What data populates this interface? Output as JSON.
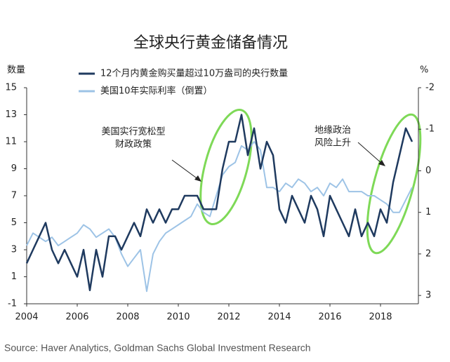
{
  "chart_data": {
    "type": "line",
    "title": "全球央行黄金储备情况",
    "y_label": "数量",
    "y2_label": "%",
    "source": "Source: Haver Analytics, Goldman Sachs Global Investment Research",
    "annotations": [
      {
        "lines": [
          "美国实行宽松型",
          "财政政策"
        ]
      },
      {
        "lines": [
          "地缘政治",
          "风险上升"
        ]
      }
    ],
    "x": [
      2004,
      2004.25,
      2004.5,
      2004.75,
      2005,
      2005.25,
      2005.5,
      2005.75,
      2006,
      2006.25,
      2006.5,
      2006.75,
      2007,
      2007.25,
      2007.5,
      2007.75,
      2008,
      2008.25,
      2008.5,
      2008.75,
      2009,
      2009.25,
      2009.5,
      2009.75,
      2010,
      2010.25,
      2010.5,
      2010.75,
      2011,
      2011.25,
      2011.5,
      2011.75,
      2012,
      2012.25,
      2012.5,
      2012.75,
      2013,
      2013.25,
      2013.5,
      2013.75,
      2014,
      2014.25,
      2014.5,
      2014.75,
      2015,
      2015.25,
      2015.5,
      2015.75,
      2016,
      2016.25,
      2016.5,
      2016.75,
      2017,
      2017.25,
      2017.5,
      2017.75,
      2018,
      2018.25,
      2018.5,
      2018.75,
      2019,
      2019.25
    ],
    "series": [
      {
        "name": "12个月内黄金购买量超过10万盎司的央行数量",
        "color": "#1f3a5f",
        "axis": "y",
        "values": [
          2,
          3,
          4,
          5,
          3,
          2,
          3,
          2,
          1,
          3,
          0,
          3,
          1,
          4,
          4,
          3,
          4,
          5,
          4,
          6,
          5,
          6,
          5,
          6,
          6,
          7,
          7,
          7,
          6,
          6,
          6,
          9,
          11,
          11,
          13,
          10,
          12,
          9,
          11,
          10,
          6,
          5,
          7,
          6,
          5,
          7,
          6,
          4,
          7,
          6,
          5,
          4,
          6,
          4,
          5,
          4,
          6,
          5,
          8,
          10,
          12,
          11
        ]
      },
      {
        "name": "美国10年实际利率（倒置）",
        "color": "#9dc3e6",
        "axis": "y2",
        "values": [
          1.8,
          1.5,
          1.6,
          1.7,
          1.6,
          1.8,
          1.7,
          1.6,
          1.5,
          1.3,
          1.4,
          1.6,
          1.5,
          1.4,
          1.6,
          2.0,
          2.3,
          2.1,
          1.9,
          2.9,
          2.0,
          1.7,
          1.5,
          1.4,
          1.3,
          1.2,
          1.1,
          0.8,
          1.0,
          1.1,
          0.6,
          0.1,
          -0.1,
          -0.2,
          -0.6,
          -0.5,
          -0.7,
          -0.5,
          0.4,
          0.4,
          0.5,
          0.3,
          0.4,
          0.2,
          0.3,
          0.5,
          0.4,
          0.6,
          0.3,
          0.4,
          0.2,
          0.5,
          0.5,
          0.5,
          0.6,
          0.6,
          0.7,
          0.8,
          1.0,
          1.0,
          0.7,
          0.4
        ]
      }
    ],
    "xlim": [
      2004,
      2019.5
    ],
    "xticks": [
      2004,
      2006,
      2008,
      2010,
      2012,
      2014,
      2016,
      2018
    ],
    "ylim": [
      -1,
      15
    ],
    "yticks": [
      -1,
      1,
      3,
      5,
      7,
      9,
      11,
      13,
      15
    ],
    "y2lim": [
      3.2,
      -2
    ],
    "y2ticks": [
      -2,
      -1,
      0,
      1,
      2,
      3
    ]
  }
}
